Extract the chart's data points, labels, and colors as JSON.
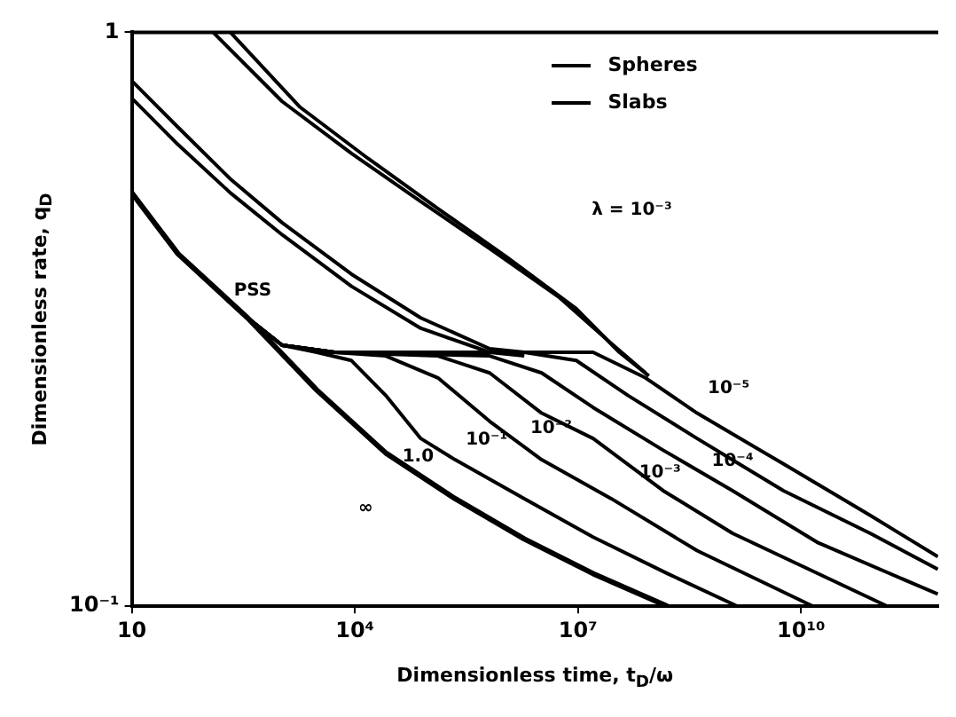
{
  "chart_data": {
    "type": "line",
    "xlabel": "Dimensionless time, t$_{D}$/ω",
    "ylabel": "Dimensionless rate, q$_{D}$",
    "xlim": [
      10,
      700000000000
    ],
    "ylim": [
      0.1,
      1
    ],
    "log": "xy",
    "xticks": [
      {
        "value": 10,
        "label": "10"
      },
      {
        "value": 10000,
        "label": "10⁴"
      },
      {
        "value": 10000000,
        "label": "10⁷"
      },
      {
        "value": 10000000000,
        "label": "10¹⁰"
      }
    ],
    "yticks": [
      {
        "value": 0.1,
        "label": "10⁻¹"
      },
      1
    ],
    "grid": false,
    "legend": "top right",
    "marker": "none",
    "line_style": "solid",
    "series": [
      {
        "name": "Spheres",
        "color": "#000000",
        "x": [
          124,
          1050,
          9000,
          77000,
          650000,
          5500000,
          28000000,
          81000000
        ],
        "values": [
          1,
          0.758,
          0.615,
          0.507,
          0.42,
          0.346,
          0.287,
          0.255
        ]
      },
      {
        "name": "Slabs",
        "color": "#000000",
        "x": [
          212,
          1800,
          15000,
          131000,
          1100000,
          9500000,
          36000000,
          90000000
        ],
        "values": [
          1,
          0.742,
          0.603,
          0.493,
          0.406,
          0.33,
          0.277,
          0.252
        ]
      },
      {
        "color": "#000000",
        "x": [
          10,
          42,
          212,
          1050,
          9000,
          77000,
          650000,
          1900000
        ],
        "values": [
          0.823,
          0.683,
          0.555,
          0.466,
          0.379,
          0.318,
          0.281,
          0.277
        ]
      },
      {
        "color": "#000000",
        "x": [
          10,
          42,
          212,
          1050,
          9000,
          77000,
          650000,
          1900000
        ],
        "values": [
          0.768,
          0.637,
          0.525,
          0.444,
          0.361,
          0.305,
          0.277,
          0.273
        ]
      },
      {
        "color": "#000000",
        "x": [
          10,
          42,
          361,
          3080,
          26000,
          223000,
          1900000,
          16000000,
          160000000
        ],
        "values": [
          0.525,
          0.411,
          0.318,
          0.238,
          0.185,
          0.154,
          0.131,
          0.114,
          0.1
        ]
      },
      {
        "color": "#000000",
        "x": [
          361,
          1050,
          3080,
          9000,
          26000,
          77000,
          223000,
          1900000,
          16000000,
          160000000,
          1400000000
        ],
        "values": [
          0.318,
          0.285,
          0.277,
          0.268,
          0.233,
          0.196,
          0.18,
          0.154,
          0.132,
          0.114,
          0.1
        ]
      },
      {
        "color": "#000000",
        "x": [
          361,
          1050,
          5300,
          26000,
          131000,
          650000,
          3250000,
          28000000,
          400000000,
          14500000000
        ],
        "values": [
          0.318,
          0.285,
          0.277,
          0.273,
          0.25,
          0.21,
          0.18,
          0.154,
          0.125,
          0.1
        ]
      },
      {
        "color": "#000000",
        "x": [
          361,
          1050,
          5300,
          131000,
          650000,
          3250000,
          16000000,
          140000000,
          1200000000,
          145000000000
        ],
        "values": [
          0.318,
          0.285,
          0.277,
          0.273,
          0.255,
          0.217,
          0.196,
          0.159,
          0.134,
          0.1
        ]
      },
      {
        "color": "#000000",
        "x": [
          361,
          1050,
          5300,
          650000,
          3250000,
          16000000,
          140000000,
          1200000000,
          17000000000,
          690000000000
        ],
        "values": [
          0.318,
          0.285,
          0.277,
          0.273,
          0.255,
          0.222,
          0.187,
          0.159,
          0.129,
          0.105
        ]
      },
      {
        "color": "#000000",
        "x": [
          361,
          1050,
          5300,
          1900000,
          9500000,
          47000000,
          400000000,
          5800000000,
          85000000000,
          690000000000
        ],
        "values": [
          0.318,
          0.285,
          0.277,
          0.277,
          0.268,
          0.233,
          0.196,
          0.159,
          0.134,
          0.116
        ]
      },
      {
        "color": "#000000",
        "x": [
          361,
          1050,
          5300,
          16000000,
          81000000,
          400000000,
          5800000000,
          85000000000,
          690000000000
        ],
        "values": [
          0.318,
          0.285,
          0.277,
          0.277,
          0.25,
          0.217,
          0.177,
          0.144,
          0.122
        ]
      }
    ],
    "annotations": [
      "PSS",
      "∞",
      "1.0",
      "10⁻¹",
      "10⁻²",
      "10⁻³",
      "10⁻⁴",
      "10⁻⁵",
      "λ = 10⁻³"
    ]
  }
}
